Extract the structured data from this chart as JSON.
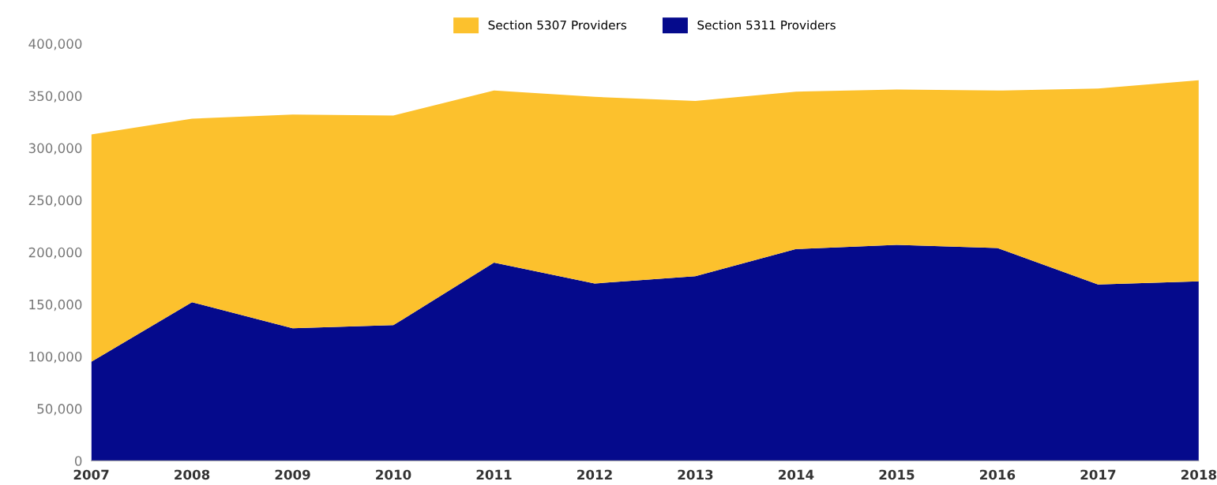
{
  "chart_data": {
    "type": "area",
    "stacked": true,
    "categories": [
      "2007",
      "2008",
      "2009",
      "2010",
      "2011",
      "2012",
      "2013",
      "2014",
      "2015",
      "2016",
      "2017",
      "2018"
    ],
    "series": [
      {
        "name": "Section 5311 Providers",
        "color": "#050a8c",
        "values": [
          95000,
          152000,
          127000,
          130000,
          190000,
          170000,
          177000,
          203000,
          207000,
          204000,
          169000,
          172000
        ]
      },
      {
        "name": "Section 5307 Providers",
        "color": "#fcc12d",
        "values": [
          218000,
          176000,
          205000,
          201000,
          165000,
          179000,
          168000,
          151000,
          149000,
          151000,
          188000,
          193000
        ]
      }
    ],
    "ylim": [
      0,
      400000
    ],
    "yticks": [
      {
        "value": 0,
        "label": "0"
      },
      {
        "value": 50000,
        "label": "50,000"
      },
      {
        "value": 100000,
        "label": "100,000"
      },
      {
        "value": 150000,
        "label": "150,000"
      },
      {
        "value": 200000,
        "label": "200,000"
      },
      {
        "value": 250000,
        "label": "250,000"
      },
      {
        "value": 300000,
        "label": "300,000"
      },
      {
        "value": 350000,
        "label": "350,000"
      },
      {
        "value": 400000,
        "label": "400,000"
      }
    ],
    "grid": false,
    "legend": "top"
  }
}
